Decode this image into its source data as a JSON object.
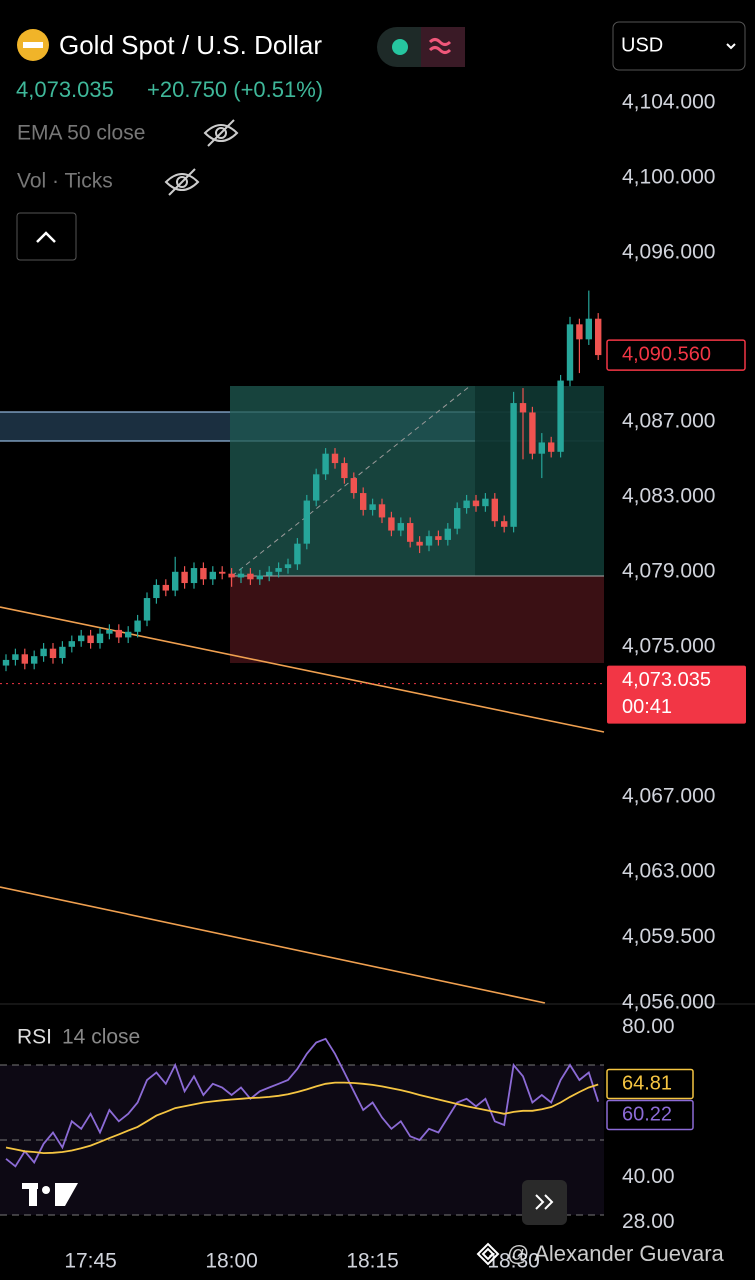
{
  "header": {
    "symbol": "Gold Spot / U.S. Dollar",
    "price": "4,073.035",
    "change": "+20.750 (+0.51%)",
    "currency": "USD"
  },
  "indicators": [
    "EMA 50 close",
    "Vol · Ticks"
  ],
  "watermark": "@ Alexander Guevara",
  "chart_data": [
    {
      "type": "candlestick",
      "x": [
        "17:36",
        "17:37",
        "17:38",
        "17:39",
        "17:40",
        "17:41",
        "17:42",
        "17:43",
        "17:44",
        "17:45",
        "17:46",
        "17:47",
        "17:48",
        "17:49",
        "17:50",
        "17:51",
        "17:52",
        "17:53",
        "17:54",
        "17:55",
        "17:56",
        "17:57",
        "17:58",
        "17:59",
        "18:00",
        "18:01",
        "18:02",
        "18:03",
        "18:04",
        "18:05",
        "18:06",
        "18:07",
        "18:08",
        "18:09",
        "18:10",
        "18:11",
        "18:12",
        "18:13",
        "18:14",
        "18:15",
        "18:16",
        "18:17",
        "18:18",
        "18:19",
        "18:20",
        "18:21",
        "18:22",
        "18:23",
        "18:24",
        "18:25",
        "18:26",
        "18:27",
        "18:28",
        "18:29",
        "18:30",
        "18:31",
        "18:32",
        "18:33",
        "18:34",
        "18:35",
        "18:36",
        "18:37",
        "18:38",
        "18:39"
      ],
      "open": [
        4074.0,
        4074.3,
        4074.6,
        4074.1,
        4074.5,
        4074.9,
        4074.4,
        4075.0,
        4075.3,
        4075.6,
        4075.2,
        4075.7,
        4075.9,
        4075.5,
        4075.8,
        4076.4,
        4077.6,
        4078.3,
        4078.0,
        4079.0,
        4078.4,
        4079.2,
        4078.6,
        4079.0,
        4078.9,
        4078.7,
        4078.9,
        4078.6,
        4078.8,
        4079.0,
        4079.2,
        4079.4,
        4080.5,
        4082.8,
        4084.2,
        4085.3,
        4084.8,
        4084.0,
        4083.2,
        4082.3,
        4082.6,
        4081.9,
        4081.2,
        4081.6,
        4080.6,
        4080.4,
        4080.9,
        4080.7,
        4081.3,
        4082.4,
        4082.8,
        4082.5,
        4082.9,
        4081.7,
        4081.4,
        4088.0,
        4087.5,
        4085.3,
        4085.9,
        4085.4,
        4089.2,
        4092.2,
        4091.4,
        4092.5
      ],
      "high": [
        4074.6,
        4074.9,
        4074.9,
        4074.8,
        4075.2,
        4075.2,
        4075.3,
        4075.6,
        4075.9,
        4075.9,
        4076.0,
        4076.2,
        4076.2,
        4076.1,
        4076.7,
        4077.9,
        4078.6,
        4078.6,
        4079.8,
        4079.3,
        4079.5,
        4079.5,
        4079.3,
        4079.3,
        4079.2,
        4079.2,
        4079.2,
        4079.1,
        4079.3,
        4079.5,
        4079.7,
        4080.8,
        4083.1,
        4084.5,
        4085.6,
        4085.6,
        4085.1,
        4084.3,
        4083.5,
        4082.9,
        4082.9,
        4082.2,
        4081.9,
        4081.9,
        4080.9,
        4081.2,
        4081.2,
        4081.6,
        4082.7,
        4083.1,
        4083.1,
        4083.2,
        4083.2,
        4082.0,
        4088.6,
        4088.8,
        4087.8,
        4086.4,
        4086.2,
        4089.5,
        4092.6,
        4092.5,
        4094.0,
        4092.8
      ],
      "low": [
        4073.7,
        4074.0,
        4073.8,
        4073.8,
        4074.2,
        4074.1,
        4074.1,
        4074.7,
        4075.0,
        4074.9,
        4074.9,
        4075.4,
        4075.2,
        4075.2,
        4075.5,
        4076.1,
        4077.3,
        4077.7,
        4077.7,
        4078.1,
        4078.1,
        4078.3,
        4078.3,
        4078.6,
        4078.2,
        4078.4,
        4078.3,
        4078.3,
        4078.5,
        4078.7,
        4078.9,
        4079.1,
        4080.2,
        4082.5,
        4083.9,
        4084.5,
        4083.7,
        4082.9,
        4082.0,
        4082.0,
        4081.6,
        4080.9,
        4080.9,
        4080.3,
        4080.0,
        4080.1,
        4080.4,
        4080.4,
        4081.0,
        4082.1,
        4082.2,
        4082.2,
        4081.4,
        4081.1,
        4081.1,
        4085.0,
        4085.0,
        4084.0,
        4085.1,
        4085.1,
        4088.9,
        4089.6,
        4091.1,
        4090.3
      ],
      "close": [
        4074.3,
        4074.6,
        4074.1,
        4074.5,
        4074.9,
        4074.4,
        4075.0,
        4075.3,
        4075.6,
        4075.2,
        4075.7,
        4075.9,
        4075.5,
        4075.8,
        4076.4,
        4077.6,
        4078.3,
        4078.0,
        4079.0,
        4078.4,
        4079.2,
        4078.6,
        4079.0,
        4078.9,
        4078.7,
        4078.9,
        4078.6,
        4078.8,
        4079.0,
        4079.2,
        4079.4,
        4080.5,
        4082.8,
        4084.2,
        4085.3,
        4084.8,
        4084.0,
        4083.2,
        4082.3,
        4082.6,
        4081.9,
        4081.2,
        4081.6,
        4080.6,
        4080.4,
        4080.9,
        4080.7,
        4081.3,
        4082.4,
        4082.8,
        4082.5,
        4082.9,
        4081.7,
        4081.4,
        4088.0,
        4087.5,
        4085.3,
        4085.9,
        4085.4,
        4089.2,
        4092.2,
        4091.4,
        4092.5,
        4090.56
      ],
      "up_color": "#26a69a",
      "down_color": "#ef5350",
      "ylim": [
        4056,
        4109.5
      ],
      "yticks": [
        {
          "value": 4104,
          "label": "4,104.000"
        },
        {
          "value": 4100,
          "label": "4,100.000"
        },
        {
          "value": 4096,
          "label": "4,096.000"
        },
        {
          "value": 4087,
          "label": "4,087.000"
        },
        {
          "value": 4083,
          "label": "4,083.000"
        },
        {
          "value": 4079,
          "label": "4,079.000"
        },
        {
          "value": 4075,
          "label": "4,075.000"
        },
        {
          "value": 4067,
          "label": "4,067.000"
        },
        {
          "value": 4063,
          "label": "4,063.000"
        },
        {
          "value": 4059.5,
          "label": "4,059.500"
        },
        {
          "value": 4056,
          "label": "4,056.000"
        }
      ],
      "xticks": [
        "17:45",
        "18:00",
        "18:15",
        "18:30"
      ],
      "price_markers": [
        {
          "value": 4090.56,
          "label": "4,090.560"
        },
        {
          "value": 4073.035,
          "label": "4,073.035",
          "countdown": "00:41"
        }
      ]
    },
    {
      "type": "line",
      "title": "RSI",
      "subtitle": "14 close",
      "series": [
        {
          "name": "RSI",
          "color": "#8c6bd6",
          "values": [
            45,
            43,
            47,
            44,
            49,
            52,
            48,
            55,
            53,
            57,
            52,
            58,
            55,
            57,
            60,
            66,
            68,
            65,
            70,
            63,
            67,
            62,
            65,
            64,
            62,
            64,
            61,
            63,
            64,
            65,
            66,
            69,
            73,
            76,
            77,
            73,
            68,
            63,
            58,
            60,
            56,
            53,
            55,
            51,
            50,
            53,
            52,
            56,
            60,
            61,
            59,
            61,
            55,
            54,
            70,
            67,
            60,
            62,
            60,
            66,
            70,
            66,
            68,
            60.22
          ]
        },
        {
          "name": "RSI MA",
          "color": "#f5c542",
          "values": [
            48,
            47.5,
            47,
            46.8,
            46.5,
            46.6,
            46.8,
            47.2,
            47.8,
            48.5,
            49.5,
            50.5,
            51.5,
            52.5,
            53.5,
            55,
            56.5,
            57.5,
            58.5,
            59,
            59.5,
            60,
            60.3,
            60.6,
            60.8,
            61,
            61.2,
            61.3,
            61.5,
            61.8,
            62.2,
            62.8,
            63.5,
            64.3,
            65,
            65.3,
            65.3,
            65.2,
            65,
            64.7,
            64.3,
            63.8,
            63.3,
            62.7,
            62,
            61.4,
            60.8,
            60.2,
            59.6,
            59,
            58.5,
            58,
            57.5,
            57,
            57.5,
            57.8,
            57.8,
            58.2,
            58.8,
            60,
            61.5,
            62.8,
            64,
            64.81
          ]
        }
      ],
      "ylim": [
        22,
        86
      ],
      "yticks": [
        {
          "value": 80,
          "label": "80.00"
        },
        {
          "value": 40,
          "label": "40.00"
        },
        {
          "value": 28,
          "label": "28.00"
        }
      ],
      "levels": [
        70,
        50,
        30
      ]
    }
  ]
}
